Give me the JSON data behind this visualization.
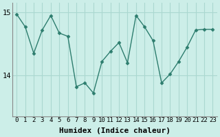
{
  "x": [
    0,
    1,
    2,
    3,
    4,
    5,
    6,
    7,
    8,
    9,
    10,
    11,
    12,
    13,
    14,
    15,
    16,
    17,
    18,
    19,
    20,
    21,
    22,
    23
  ],
  "y": [
    14.97,
    14.77,
    14.35,
    14.72,
    14.95,
    14.67,
    14.62,
    13.82,
    13.88,
    13.72,
    14.22,
    14.38,
    14.52,
    14.2,
    14.95,
    14.77,
    14.55,
    13.88,
    14.02,
    14.22,
    14.45,
    14.72,
    14.73,
    14.73
  ],
  "line_color": "#2d7d6e",
  "marker": "D",
  "marker_size": 2.5,
  "bg_color": "#cceee8",
  "grid_color": "#aad8d0",
  "xlabel": "Humidex (Indice chaleur)",
  "ylim": [
    13.35,
    15.15
  ],
  "yticks": [
    14,
    15
  ],
  "xticks": [
    0,
    1,
    2,
    3,
    4,
    5,
    6,
    7,
    8,
    9,
    10,
    11,
    12,
    13,
    14,
    15,
    16,
    17,
    18,
    19,
    20,
    21,
    22,
    23
  ],
  "xlabel_fontsize": 8,
  "tick_fontsize": 6.5,
  "line_width": 1.0
}
